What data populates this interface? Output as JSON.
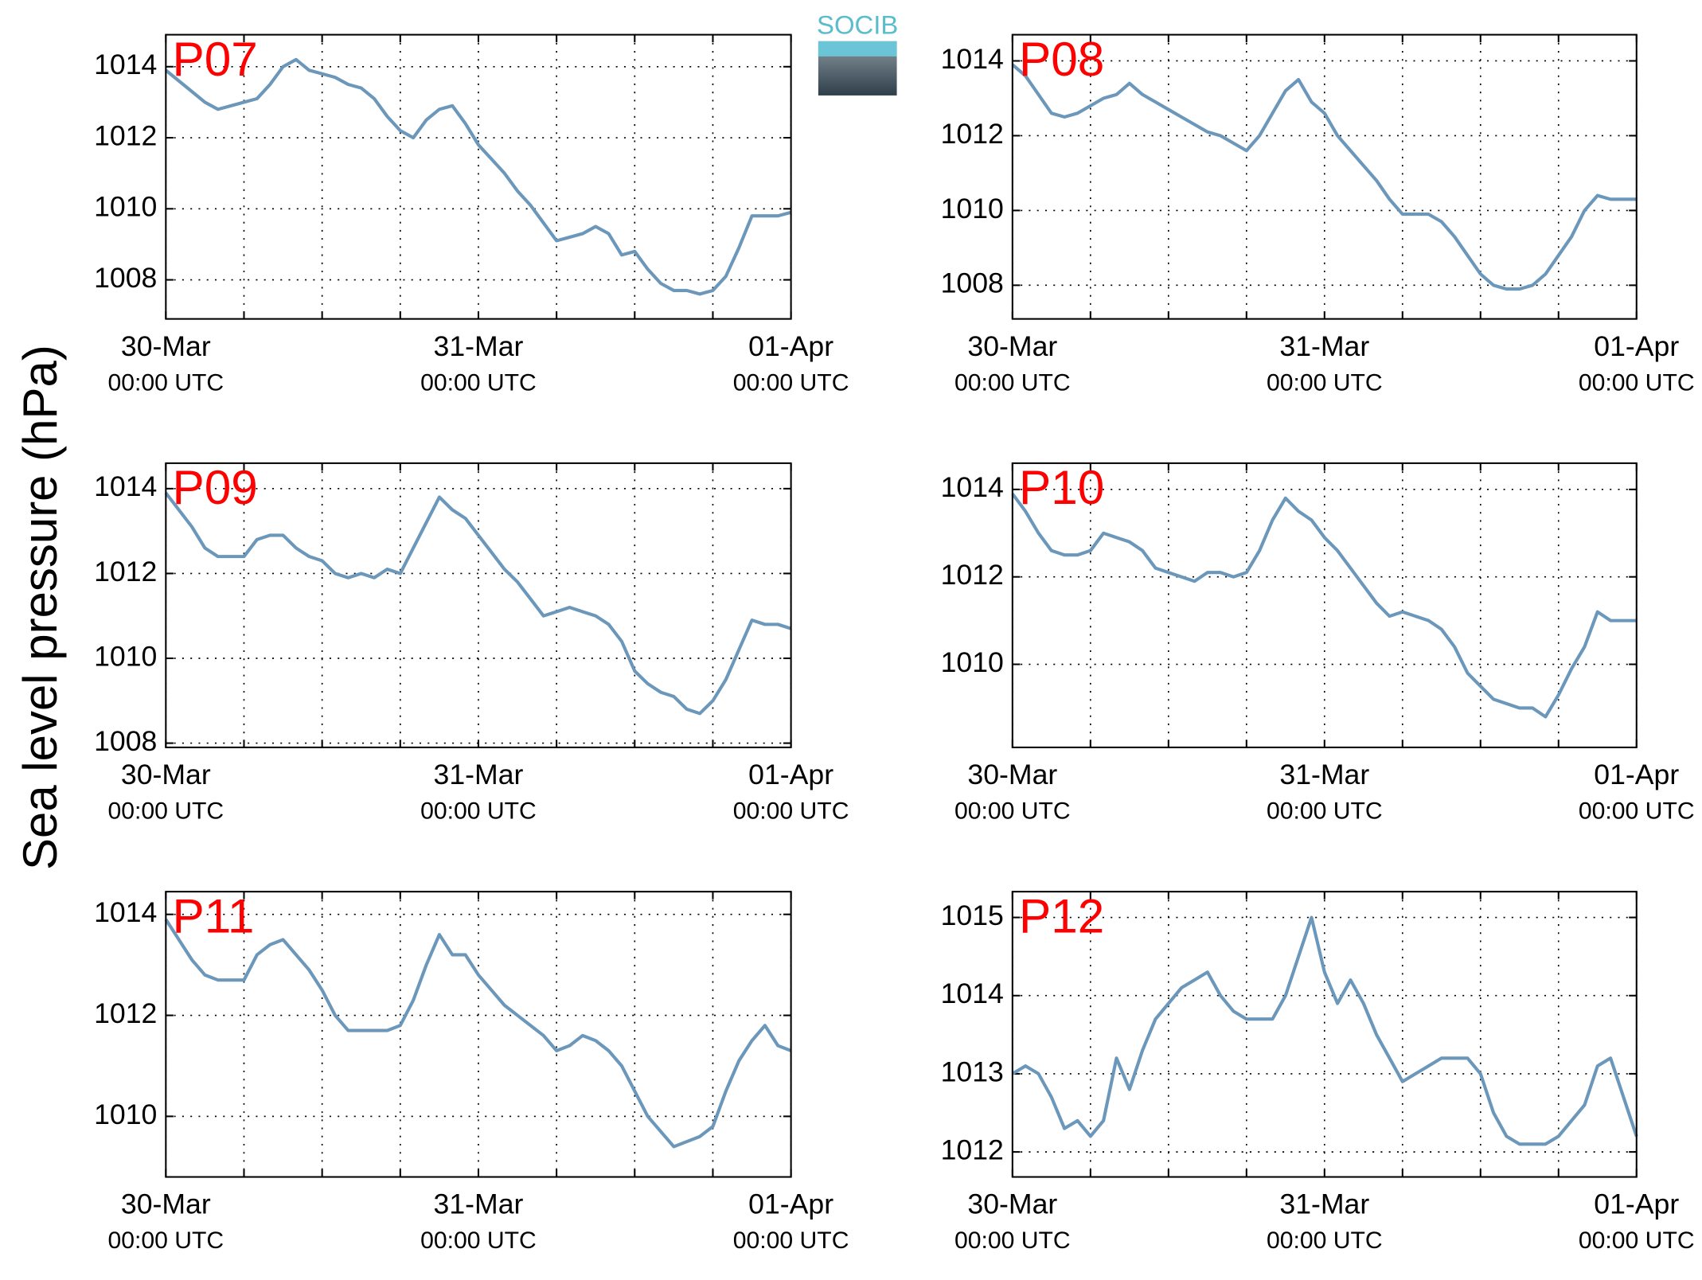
{
  "ylabel": "Sea level pressure (hPa)",
  "logo_text": "SOCIB",
  "chart_data": [
    {
      "type": "line",
      "title": "P07",
      "x": [
        0,
        1,
        2,
        3,
        4,
        5,
        6,
        7,
        8,
        9,
        10,
        11,
        12,
        13,
        14,
        15,
        16,
        17,
        18,
        19,
        20,
        21,
        22,
        23,
        24,
        25,
        26,
        27,
        28,
        29,
        30,
        31,
        32,
        33,
        34,
        35,
        36,
        37,
        38,
        39,
        40,
        41,
        42,
        43,
        44,
        45,
        46,
        47,
        48
      ],
      "series": [
        {
          "color": "#6b97bb",
          "values": [
            1013.9,
            1013.6,
            1013.3,
            1013.0,
            1012.8,
            1012.9,
            1013.0,
            1013.1,
            1013.5,
            1014.0,
            1014.2,
            1013.9,
            1013.8,
            1013.7,
            1013.5,
            1013.4,
            1013.1,
            1012.6,
            1012.2,
            1012.0,
            1012.5,
            1012.8,
            1012.9,
            1012.4,
            1011.8,
            1011.4,
            1011.0,
            1010.5,
            1010.1,
            1009.6,
            1009.1,
            1009.2,
            1009.3,
            1009.5,
            1009.3,
            1008.7,
            1008.8,
            1008.3,
            1007.9,
            1007.7,
            1007.7,
            1007.6,
            1007.7,
            1008.1,
            1008.9,
            1009.8,
            1009.8,
            1009.8,
            1009.9
          ]
        }
      ],
      "xlim": [
        0,
        48
      ],
      "xticks": [
        {
          "value": 0,
          "label": "30-Mar",
          "sublabel": "00:00 UTC"
        },
        {
          "value": 24,
          "label": "31-Mar",
          "sublabel": "00:00 UTC"
        },
        {
          "value": 48,
          "label": "01-Apr",
          "sublabel": "00:00 UTC"
        }
      ],
      "xminorticks": [
        6,
        12,
        18,
        30,
        36,
        42
      ],
      "ylim": [
        1006.9,
        1014.9
      ],
      "yticks": [
        1008,
        1010,
        1012,
        1014
      ],
      "grid": true
    },
    {
      "type": "line",
      "title": "P08",
      "x": [
        0,
        1,
        2,
        3,
        4,
        5,
        6,
        7,
        8,
        9,
        10,
        11,
        12,
        13,
        14,
        15,
        16,
        17,
        18,
        19,
        20,
        21,
        22,
        23,
        24,
        25,
        26,
        27,
        28,
        29,
        30,
        31,
        32,
        33,
        34,
        35,
        36,
        37,
        38,
        39,
        40,
        41,
        42,
        43,
        44,
        45,
        46,
        47,
        48
      ],
      "series": [
        {
          "color": "#6b97bb",
          "values": [
            1013.9,
            1013.6,
            1013.1,
            1012.6,
            1012.5,
            1012.6,
            1012.8,
            1013.0,
            1013.1,
            1013.4,
            1013.1,
            1012.9,
            1012.7,
            1012.5,
            1012.3,
            1012.1,
            1012.0,
            1011.8,
            1011.6,
            1012.0,
            1012.6,
            1013.2,
            1013.5,
            1012.9,
            1012.6,
            1012.0,
            1011.6,
            1011.2,
            1010.8,
            1010.3,
            1009.9,
            1009.9,
            1009.9,
            1009.7,
            1009.3,
            1008.8,
            1008.3,
            1008.0,
            1007.9,
            1007.9,
            1008.0,
            1008.3,
            1008.8,
            1009.3,
            1010.0,
            1010.4,
            1010.3,
            1010.3,
            1010.3
          ]
        }
      ],
      "xlim": [
        0,
        48
      ],
      "xticks": [
        {
          "value": 0,
          "label": "30-Mar",
          "sublabel": "00:00 UTC"
        },
        {
          "value": 24,
          "label": "31-Mar",
          "sublabel": "00:00 UTC"
        },
        {
          "value": 48,
          "label": "01-Apr",
          "sublabel": "00:00 UTC"
        }
      ],
      "xminorticks": [
        6,
        12,
        18,
        30,
        36,
        42
      ],
      "ylim": [
        1007.1,
        1014.7
      ],
      "yticks": [
        1008,
        1010,
        1012,
        1014
      ],
      "grid": true
    },
    {
      "type": "line",
      "title": "P09",
      "x": [
        0,
        1,
        2,
        3,
        4,
        5,
        6,
        7,
        8,
        9,
        10,
        11,
        12,
        13,
        14,
        15,
        16,
        17,
        18,
        19,
        20,
        21,
        22,
        23,
        24,
        25,
        26,
        27,
        28,
        29,
        30,
        31,
        32,
        33,
        34,
        35,
        36,
        37,
        38,
        39,
        40,
        41,
        42,
        43,
        44,
        45,
        46,
        47,
        48
      ],
      "series": [
        {
          "color": "#6b97bb",
          "values": [
            1013.9,
            1013.5,
            1013.1,
            1012.6,
            1012.4,
            1012.4,
            1012.4,
            1012.8,
            1012.9,
            1012.9,
            1012.6,
            1012.4,
            1012.3,
            1012.0,
            1011.9,
            1012.0,
            1011.9,
            1012.1,
            1012.0,
            1012.6,
            1013.2,
            1013.8,
            1013.5,
            1013.3,
            1012.9,
            1012.5,
            1012.1,
            1011.8,
            1011.4,
            1011.0,
            1011.1,
            1011.2,
            1011.1,
            1011.0,
            1010.8,
            1010.4,
            1009.7,
            1009.4,
            1009.2,
            1009.1,
            1008.8,
            1008.7,
            1009.0,
            1009.5,
            1010.2,
            1010.9,
            1010.8,
            1010.8,
            1010.7
          ]
        }
      ],
      "xlim": [
        0,
        48
      ],
      "xticks": [
        {
          "value": 0,
          "label": "30-Mar",
          "sublabel": "00:00 UTC"
        },
        {
          "value": 24,
          "label": "31-Mar",
          "sublabel": "00:00 UTC"
        },
        {
          "value": 48,
          "label": "01-Apr",
          "sublabel": "00:00 UTC"
        }
      ],
      "xminorticks": [
        6,
        12,
        18,
        30,
        36,
        42
      ],
      "ylim": [
        1007.9,
        1014.6
      ],
      "yticks": [
        1008,
        1010,
        1012,
        1014
      ],
      "grid": true
    },
    {
      "type": "line",
      "title": "P10",
      "x": [
        0,
        1,
        2,
        3,
        4,
        5,
        6,
        7,
        8,
        9,
        10,
        11,
        12,
        13,
        14,
        15,
        16,
        17,
        18,
        19,
        20,
        21,
        22,
        23,
        24,
        25,
        26,
        27,
        28,
        29,
        30,
        31,
        32,
        33,
        34,
        35,
        36,
        37,
        38,
        39,
        40,
        41,
        42,
        43,
        44,
        45,
        46,
        47,
        48
      ],
      "series": [
        {
          "color": "#6b97bb",
          "values": [
            1013.9,
            1013.5,
            1013.0,
            1012.6,
            1012.5,
            1012.5,
            1012.6,
            1013.0,
            1012.9,
            1012.8,
            1012.6,
            1012.2,
            1012.1,
            1012.0,
            1011.9,
            1012.1,
            1012.1,
            1012.0,
            1012.1,
            1012.6,
            1013.3,
            1013.8,
            1013.5,
            1013.3,
            1012.9,
            1012.6,
            1012.2,
            1011.8,
            1011.4,
            1011.1,
            1011.2,
            1011.1,
            1011.0,
            1010.8,
            1010.4,
            1009.8,
            1009.5,
            1009.2,
            1009.1,
            1009.0,
            1009.0,
            1008.8,
            1009.3,
            1009.9,
            1010.4,
            1011.2,
            1011.0,
            1011.0,
            1011.0
          ]
        }
      ],
      "xlim": [
        0,
        48
      ],
      "xticks": [
        {
          "value": 0,
          "label": "30-Mar",
          "sublabel": "00:00 UTC"
        },
        {
          "value": 24,
          "label": "31-Mar",
          "sublabel": "00:00 UTC"
        },
        {
          "value": 48,
          "label": "01-Apr",
          "sublabel": "00:00 UTC"
        }
      ],
      "xminorticks": [
        6,
        12,
        18,
        30,
        36,
        42
      ],
      "ylim": [
        1008.1,
        1014.6
      ],
      "yticks": [
        1010,
        1012,
        1014
      ],
      "grid": true
    },
    {
      "type": "line",
      "title": "P11",
      "x": [
        0,
        1,
        2,
        3,
        4,
        5,
        6,
        7,
        8,
        9,
        10,
        11,
        12,
        13,
        14,
        15,
        16,
        17,
        18,
        19,
        20,
        21,
        22,
        23,
        24,
        25,
        26,
        27,
        28,
        29,
        30,
        31,
        32,
        33,
        34,
        35,
        36,
        37,
        38,
        39,
        40,
        41,
        42,
        43,
        44,
        45,
        46,
        47,
        48
      ],
      "series": [
        {
          "color": "#6b97bb",
          "values": [
            1013.9,
            1013.5,
            1013.1,
            1012.8,
            1012.7,
            1012.7,
            1012.7,
            1013.2,
            1013.4,
            1013.5,
            1013.2,
            1012.9,
            1012.5,
            1012.0,
            1011.7,
            1011.7,
            1011.7,
            1011.7,
            1011.8,
            1012.3,
            1013.0,
            1013.6,
            1013.2,
            1013.2,
            1012.8,
            1012.5,
            1012.2,
            1012.0,
            1011.8,
            1011.6,
            1011.3,
            1011.4,
            1011.6,
            1011.5,
            1011.3,
            1011.0,
            1010.5,
            1010.0,
            1009.7,
            1009.4,
            1009.5,
            1009.6,
            1009.8,
            1010.5,
            1011.1,
            1011.5,
            1011.8,
            1011.4,
            1011.3
          ]
        }
      ],
      "xlim": [
        0,
        48
      ],
      "xticks": [
        {
          "value": 0,
          "label": "30-Mar",
          "sublabel": "00:00 UTC"
        },
        {
          "value": 24,
          "label": "31-Mar",
          "sublabel": "00:00 UTC"
        },
        {
          "value": 48,
          "label": "01-Apr",
          "sublabel": "00:00 UTC"
        }
      ],
      "xminorticks": [
        6,
        12,
        18,
        30,
        36,
        42
      ],
      "ylim": [
        1008.8,
        1014.45
      ],
      "yticks": [
        1010,
        1012,
        1014
      ],
      "grid": true
    },
    {
      "type": "line",
      "title": "P12",
      "x": [
        0,
        1,
        2,
        3,
        4,
        5,
        6,
        7,
        8,
        9,
        10,
        11,
        12,
        13,
        14,
        15,
        16,
        17,
        18,
        19,
        20,
        21,
        22,
        23,
        24,
        25,
        26,
        27,
        28,
        29,
        30,
        31,
        32,
        33,
        34,
        35,
        36,
        37,
        38,
        39,
        40,
        41,
        42,
        43,
        44,
        45,
        46,
        47,
        48
      ],
      "series": [
        {
          "color": "#6b97bb",
          "values": [
            1013.0,
            1013.1,
            1013.0,
            1012.7,
            1012.3,
            1012.4,
            1012.2,
            1012.4,
            1013.2,
            1012.8,
            1013.3,
            1013.7,
            1013.9,
            1014.1,
            1014.2,
            1014.3,
            1014.0,
            1013.8,
            1013.7,
            1013.7,
            1013.7,
            1014.0,
            1014.5,
            1015.0,
            1014.3,
            1013.9,
            1014.2,
            1013.9,
            1013.5,
            1013.2,
            1012.9,
            1013.0,
            1013.1,
            1013.2,
            1013.2,
            1013.2,
            1013.0,
            1012.5,
            1012.2,
            1012.1,
            1012.1,
            1012.1,
            1012.2,
            1012.4,
            1012.6,
            1013.1,
            1013.2,
            1012.7,
            1012.2
          ]
        }
      ],
      "xlim": [
        0,
        48
      ],
      "xticks": [
        {
          "value": 0,
          "label": "30-Mar",
          "sublabel": "00:00 UTC"
        },
        {
          "value": 24,
          "label": "31-Mar",
          "sublabel": "00:00 UTC"
        },
        {
          "value": 48,
          "label": "01-Apr",
          "sublabel": "00:00 UTC"
        }
      ],
      "xminorticks": [
        6,
        12,
        18,
        30,
        36,
        42
      ],
      "ylim": [
        1011.68,
        1015.33
      ],
      "yticks": [
        1012,
        1013,
        1014,
        1015
      ],
      "grid": true
    }
  ]
}
